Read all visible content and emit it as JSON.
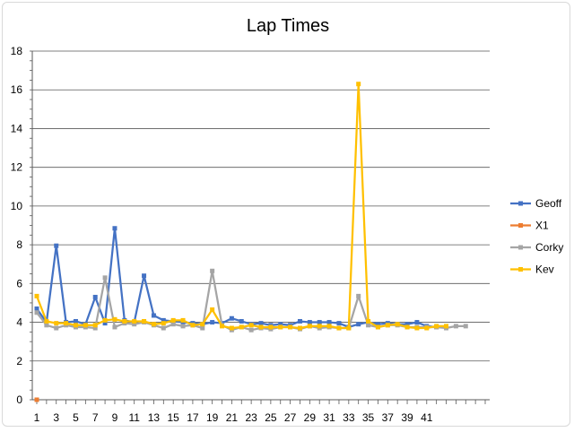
{
  "chart_data": {
    "type": "line",
    "title": "Lap Times",
    "xlabel": "",
    "ylabel": "",
    "ylim": [
      0,
      18
    ],
    "yticks": [
      0,
      2,
      4,
      6,
      8,
      10,
      12,
      14,
      16,
      18
    ],
    "xrange": [
      1,
      47
    ],
    "xtick_labels": [
      1,
      3,
      5,
      7,
      9,
      11,
      13,
      15,
      17,
      19,
      21,
      23,
      25,
      27,
      29,
      31,
      33,
      35,
      37,
      39,
      41
    ],
    "grid": "horizontal",
    "legend_position": "right",
    "series": [
      {
        "name": "Geoff",
        "color": "#4472c4",
        "x": [
          1,
          2,
          3,
          4,
          5,
          6,
          7,
          8,
          9,
          10,
          11,
          12,
          13,
          14,
          15,
          16,
          17,
          18,
          19,
          20,
          21,
          22,
          23,
          24,
          25,
          26,
          27,
          28,
          29,
          30,
          31,
          32,
          33,
          34,
          35,
          36,
          37,
          38,
          39,
          40,
          41,
          42
        ],
        "values": [
          4.7,
          4.0,
          7.95,
          4.0,
          4.05,
          3.9,
          5.3,
          3.95,
          8.85,
          4.1,
          4.0,
          6.4,
          4.35,
          4.1,
          4.05,
          4.0,
          3.95,
          3.9,
          4.0,
          3.95,
          4.2,
          4.05,
          3.9,
          3.95,
          3.85,
          3.9,
          3.85,
          4.05,
          4.0,
          4.0,
          4.0,
          3.95,
          3.75,
          3.9,
          4.0,
          3.9,
          3.95,
          3.9,
          3.9,
          4.0,
          3.8,
          3.75
        ]
      },
      {
        "name": "X1",
        "color": "#ed7d31",
        "x": [
          1
        ],
        "values": [
          0
        ]
      },
      {
        "name": "Corky",
        "color": "#a5a5a5",
        "x": [
          1,
          2,
          3,
          4,
          5,
          6,
          7,
          8,
          9,
          10,
          11,
          12,
          13,
          14,
          15,
          16,
          17,
          18,
          19,
          20,
          21,
          22,
          23,
          24,
          25,
          26,
          27,
          28,
          29,
          30,
          31,
          32,
          33,
          34,
          35,
          36,
          37,
          38,
          39,
          40,
          41,
          42,
          43,
          44,
          45
        ],
        "values": [
          4.5,
          3.85,
          3.7,
          3.85,
          3.75,
          3.75,
          3.7,
          6.3,
          3.75,
          3.95,
          3.9,
          4.0,
          3.85,
          3.7,
          3.9,
          3.8,
          3.85,
          3.7,
          6.65,
          3.85,
          3.6,
          3.75,
          3.6,
          3.7,
          3.65,
          3.75,
          3.75,
          3.65,
          3.8,
          3.7,
          3.75,
          3.7,
          3.7,
          5.35,
          3.85,
          3.75,
          3.85,
          3.85,
          3.75,
          3.75,
          3.75,
          3.75,
          3.7,
          3.8,
          3.8
        ]
      },
      {
        "name": "Kev",
        "color": "#ffc000",
        "x": [
          1,
          2,
          3,
          4,
          5,
          6,
          7,
          8,
          9,
          10,
          11,
          12,
          13,
          14,
          15,
          16,
          17,
          18,
          19,
          20,
          21,
          22,
          23,
          24,
          25,
          26,
          27,
          28,
          29,
          30,
          31,
          32,
          33,
          34,
          35,
          36,
          37,
          38,
          39,
          40,
          41,
          42,
          43
        ],
        "values": [
          5.35,
          4.05,
          3.95,
          3.95,
          3.85,
          3.85,
          3.85,
          4.1,
          4.15,
          4.05,
          4.05,
          4.05,
          3.9,
          3.95,
          4.1,
          4.1,
          3.85,
          3.9,
          4.65,
          3.8,
          3.7,
          3.75,
          3.85,
          3.75,
          3.75,
          3.75,
          3.75,
          3.7,
          3.8,
          3.8,
          3.8,
          3.7,
          3.7,
          16.3,
          4.05,
          3.75,
          3.85,
          3.9,
          3.75,
          3.7,
          3.7,
          3.8,
          3.8
        ]
      }
    ]
  }
}
